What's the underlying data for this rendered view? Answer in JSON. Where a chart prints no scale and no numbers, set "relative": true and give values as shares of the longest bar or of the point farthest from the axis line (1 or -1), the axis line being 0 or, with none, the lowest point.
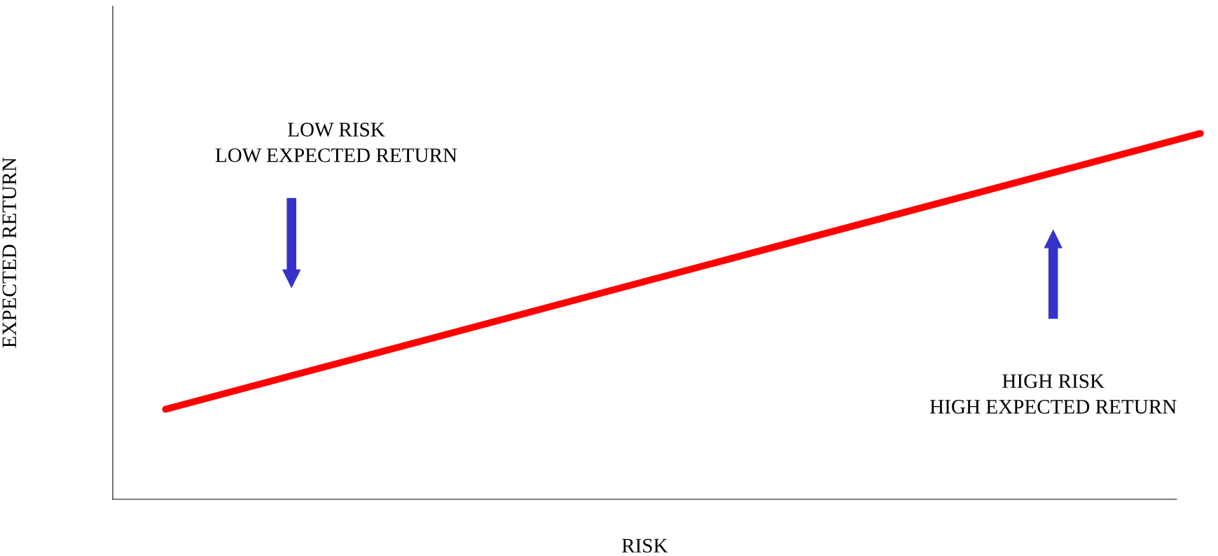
{
  "chart_data": {
    "type": "line",
    "relative": true,
    "xlabel": "RISK",
    "ylabel": "EXPECTED RETURN",
    "categories": [
      null,
      null
    ],
    "series": [
      {
        "color": "#ff0000",
        "values": [
          0.246,
          1
        ]
      }
    ],
    "annotations": [
      "LOW RISK\nLOW EXPECTED RETURN",
      "HIGH RISK\nHIGH EXPECTED RETURN"
    ],
    "legend": false,
    "marker": "none",
    "line_style": "solid"
  }
}
